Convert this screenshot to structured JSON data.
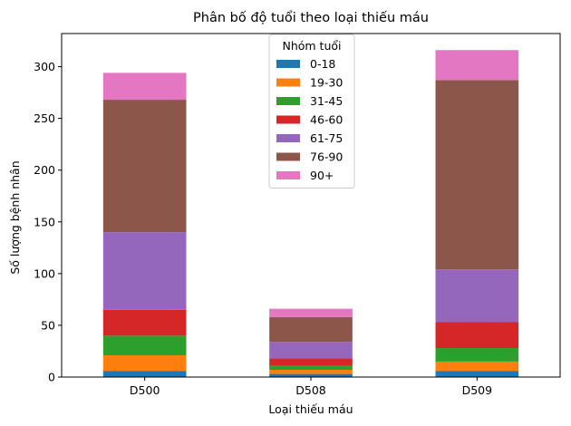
{
  "chart_data": {
    "type": "bar",
    "stacked": true,
    "title": "Phân bố độ tuổi theo loại thiếu máu",
    "xlabel": "Loại thiếu máu",
    "ylabel": "Số lượng bệnh nhân",
    "categories": [
      "D500",
      "D508",
      "D509"
    ],
    "ylim": [
      0,
      332
    ],
    "yticks": [
      0,
      50,
      100,
      150,
      200,
      250,
      300
    ],
    "legend": {
      "title": "Nhóm tuổi",
      "placement": "upper-center"
    },
    "series": [
      {
        "name": "0-18",
        "color": "#1f77b4",
        "values": [
          6,
          3,
          6
        ]
      },
      {
        "name": "19-30",
        "color": "#ff7f0e",
        "values": [
          15,
          4,
          9
        ]
      },
      {
        "name": "31-45",
        "color": "#2ca02c",
        "values": [
          19,
          4,
          13
        ]
      },
      {
        "name": "46-60",
        "color": "#d62728",
        "values": [
          25,
          7,
          25
        ]
      },
      {
        "name": "61-75",
        "color": "#9467bd",
        "values": [
          75,
          16,
          51
        ]
      },
      {
        "name": "76-90",
        "color": "#8c564b",
        "values": [
          128,
          24,
          183
        ]
      },
      {
        "name": "90+",
        "color": "#e377c2",
        "values": [
          26,
          8,
          29
        ]
      }
    ]
  }
}
